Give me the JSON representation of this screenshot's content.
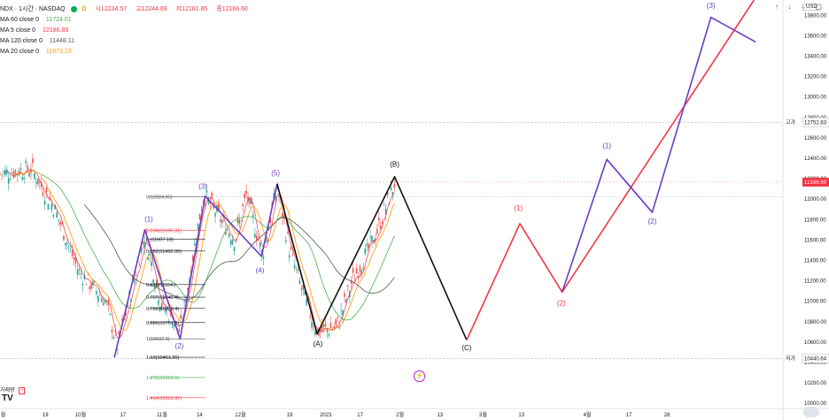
{
  "legend": {
    "symbol": "NDX · 1시간 · NASDAQ",
    "o": "시12234.57",
    "h": "고12244.69",
    "l": "저12161.85",
    "c": "종12166.60",
    "d_badge": "D",
    "ma": [
      {
        "label": "MA 60 close 0",
        "value": "11724.01",
        "color": "#4caf50"
      },
      {
        "label": "MA 5 close 0",
        "value": "12186.89",
        "color": "#f23645"
      },
      {
        "label": "MA 120 close 0",
        "value": "11448.11",
        "color": "#555555"
      },
      {
        "label": "MA 20 close 0",
        "value": "11973.23",
        "color": "#ff9800"
      }
    ]
  },
  "toolbar": {
    "up": "↑",
    "down": "↓",
    "collapse": "⌄",
    "expand": "▢"
  },
  "currency": "USD",
  "volume_label": "거래량",
  "volume_x": "×",
  "tv_logo": "TV",
  "lightning": "⚡",
  "colors": {
    "purple": "#6a3dc4",
    "red": "#f23645",
    "black": "#111111",
    "green": "#4caf50",
    "orange": "#ff9800",
    "gray": "#555555"
  },
  "chart_data": {
    "type": "line",
    "ylim": [
      9950,
      13950
    ],
    "y_ticks": [
      "13800.00",
      "13600.00",
      "13400.00",
      "13200.00",
      "13000.00",
      "12800.00",
      "12600.00",
      "12400.00",
      "12200.00",
      "12000.00",
      "11800.00",
      "11600.00",
      "11400.00",
      "11200.00",
      "11000.00",
      "10800.00",
      "10600.00",
      "10400.00",
      "10200.00",
      "10000.00"
    ],
    "x_ticks": [
      {
        "label": "월",
        "pos": 0.004
      },
      {
        "label": "19",
        "pos": 0.058
      },
      {
        "label": "10월",
        "pos": 0.103
      },
      {
        "label": "17",
        "pos": 0.157
      },
      {
        "label": "11월",
        "pos": 0.207
      },
      {
        "label": "14",
        "pos": 0.255
      },
      {
        "label": "12월",
        "pos": 0.307
      },
      {
        "label": "19",
        "pos": 0.37
      },
      {
        "label": "2023",
        "pos": 0.416
      },
      {
        "label": "17",
        "pos": 0.46
      },
      {
        "label": "2월",
        "pos": 0.511
      },
      {
        "label": "13",
        "pos": 0.562
      },
      {
        "label": "3월",
        "pos": 0.617
      },
      {
        "label": "13",
        "pos": 0.666
      },
      {
        "label": "4월",
        "pos": 0.75
      },
      {
        "label": "17",
        "pos": 0.803
      },
      {
        "label": "28",
        "pos": 0.852
      }
    ],
    "price_labels": [
      {
        "label": "고가",
        "value": 12752.83,
        "text": "12752.83",
        "color": "#555555"
      },
      {
        "label": "",
        "value": 12166.6,
        "text": "12166.60",
        "color": "#f23645"
      },
      {
        "label": "저가",
        "value": 10440.64,
        "text": "10440.64",
        "color": "#555555"
      }
    ],
    "fib_levels": [
      {
        "text": "0(12024.95)",
        "value": 12024.95,
        "color": "#555555"
      },
      {
        "text": "0.236(11696.31)",
        "value": 11696.31,
        "color": "#f23645"
      },
      {
        "text": "0.(11607.18)",
        "value": 11607.18,
        "color": "#131722"
      },
      {
        "text": "0.382(11492.99)",
        "value": 11492.99,
        "color": "#131722"
      },
      {
        "text": "0.618(11164.)",
        "value": 11164.0,
        "color": "#131722"
      },
      {
        "text": "0.707(11040.4)",
        "value": 11040.4,
        "color": "#131722"
      },
      {
        "text": "0.786(10930.4)",
        "value": 10930.4,
        "color": "#131722"
      },
      {
        "text": "0.886(10791.1)",
        "value": 10791.1,
        "color": "#131722"
      },
      {
        "text": "1(10632.3)",
        "value": 10632.3,
        "color": "#555555"
      },
      {
        "text": "1.13(10451.35)",
        "value": 10451.35,
        "color": "#131722"
      },
      {
        "text": "1.272(10253.6)",
        "value": 10253.6,
        "color": "#4caf50"
      },
      {
        "text": "1.414(10055.87)",
        "value": 10055.87,
        "color": "#f23645"
      }
    ],
    "wave_labels": [
      {
        "text": "(1)",
        "color": "#6a3dc4",
        "t": 0.19,
        "v": 11780
      },
      {
        "text": "(2)",
        "color": "#6a3dc4",
        "t": 0.229,
        "v": 10540
      },
      {
        "text": "(3)",
        "color": "#6a3dc4",
        "t": 0.259,
        "v": 12100
      },
      {
        "text": "(4)",
        "color": "#6a3dc4",
        "t": 0.332,
        "v": 11280
      },
      {
        "text": "(5)",
        "color": "#6a3dc4",
        "t": 0.352,
        "v": 12230
      },
      {
        "text": "(A)",
        "color": "#111111",
        "t": 0.406,
        "v": 10560
      },
      {
        "text": "(B)",
        "color": "#111111",
        "t": 0.504,
        "v": 12320
      },
      {
        "text": "(C)",
        "color": "#111111",
        "t": 0.596,
        "v": 10520
      },
      {
        "text": "(1)",
        "color": "#f23645",
        "t": 0.662,
        "v": 11890
      },
      {
        "text": "(2)",
        "color": "#f23645",
        "t": 0.717,
        "v": 10960
      },
      {
        "text": "(1)",
        "color": "#6a3dc4",
        "t": 0.775,
        "v": 12500
      },
      {
        "text": "(2)",
        "color": "#6a3dc4",
        "t": 0.833,
        "v": 11760
      },
      {
        "text": "(3)",
        "color": "#6a3dc4",
        "t": 0.908,
        "v": 13870
      }
    ],
    "series": [
      {
        "name": "",
        "color": "#6a3dc4",
        "kind": "purple-wave",
        "points": [
          [
            0.146,
            10450
          ],
          [
            0.185,
            11700
          ],
          [
            0.23,
            10630
          ],
          [
            0.262,
            12030
          ],
          [
            0.334,
            11440
          ],
          [
            0.354,
            12150
          ]
        ]
      },
      {
        "name": "",
        "color": "#111111",
        "kind": "black-abc",
        "points": [
          [
            0.354,
            12150
          ],
          [
            0.405,
            10680
          ],
          [
            0.504,
            12220
          ],
          [
            0.596,
            10620
          ]
        ]
      },
      {
        "name": "",
        "color": "#f23645",
        "kind": "red-wave",
        "points": [
          [
            0.596,
            10620
          ],
          [
            0.664,
            11760
          ],
          [
            0.718,
            11090
          ],
          [
            0.963,
            13950
          ]
        ]
      },
      {
        "name": "",
        "color": "#6a3dc4",
        "kind": "purple-projection",
        "points": [
          [
            0.718,
            11090
          ],
          [
            0.775,
            12390
          ],
          [
            0.833,
            11870
          ],
          [
            0.908,
            13780
          ],
          [
            0.965,
            13540
          ]
        ]
      }
    ]
  }
}
